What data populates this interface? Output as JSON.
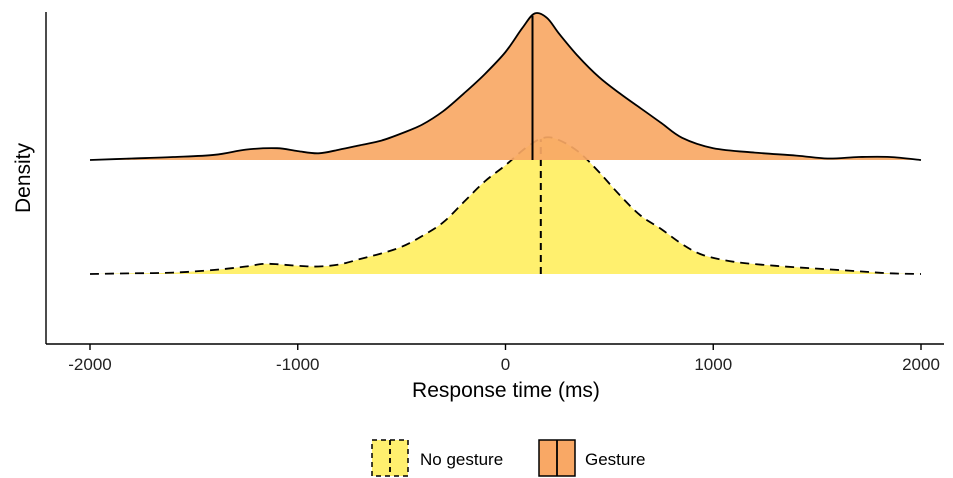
{
  "chart_data": {
    "type": "area",
    "xlabel": "Response time (ms)",
    "ylabel": "Density",
    "xlim": [
      -2000,
      2000
    ],
    "x_ticks": [
      -2000,
      -1000,
      0,
      1000,
      2000
    ],
    "grid": false,
    "legend_position": "bottom",
    "series": [
      {
        "name": "Gesture",
        "color": "#F9A865",
        "line_style": "solid",
        "median": 130,
        "points": [
          [
            -2000,
            0.0
          ],
          [
            -1800,
            0.01
          ],
          [
            -1600,
            0.02
          ],
          [
            -1400,
            0.035
          ],
          [
            -1250,
            0.07
          ],
          [
            -1100,
            0.08
          ],
          [
            -1000,
            0.06
          ],
          [
            -900,
            0.045
          ],
          [
            -800,
            0.07
          ],
          [
            -700,
            0.1
          ],
          [
            -600,
            0.13
          ],
          [
            -500,
            0.18
          ],
          [
            -400,
            0.24
          ],
          [
            -300,
            0.33
          ],
          [
            -200,
            0.45
          ],
          [
            -100,
            0.58
          ],
          [
            0,
            0.73
          ],
          [
            80,
            0.89
          ],
          [
            140,
            0.99
          ],
          [
            200,
            0.96
          ],
          [
            260,
            0.85
          ],
          [
            350,
            0.7
          ],
          [
            450,
            0.56
          ],
          [
            550,
            0.45
          ],
          [
            650,
            0.35
          ],
          [
            750,
            0.25
          ],
          [
            850,
            0.15
          ],
          [
            1000,
            0.08
          ],
          [
            1200,
            0.05
          ],
          [
            1400,
            0.03
          ],
          [
            1550,
            0.01
          ],
          [
            1700,
            0.02
          ],
          [
            1850,
            0.02
          ],
          [
            2000,
            0.0
          ]
        ]
      },
      {
        "name": "No gesture",
        "color": "#FFF06E",
        "line_style": "dashed",
        "median": 170,
        "points": [
          [
            -2000,
            0.0
          ],
          [
            -1800,
            0.005
          ],
          [
            -1600,
            0.01
          ],
          [
            -1400,
            0.03
          ],
          [
            -1250,
            0.055
          ],
          [
            -1150,
            0.075
          ],
          [
            -1000,
            0.06
          ],
          [
            -900,
            0.055
          ],
          [
            -800,
            0.07
          ],
          [
            -700,
            0.11
          ],
          [
            -600,
            0.15
          ],
          [
            -500,
            0.2
          ],
          [
            -400,
            0.28
          ],
          [
            -300,
            0.38
          ],
          [
            -200,
            0.53
          ],
          [
            -100,
            0.68
          ],
          [
            0,
            0.8
          ],
          [
            100,
            0.93
          ],
          [
            180,
            1.0
          ],
          [
            250,
            0.99
          ],
          [
            350,
            0.9
          ],
          [
            450,
            0.75
          ],
          [
            550,
            0.58
          ],
          [
            650,
            0.43
          ],
          [
            750,
            0.33
          ],
          [
            850,
            0.22
          ],
          [
            950,
            0.14
          ],
          [
            1100,
            0.09
          ],
          [
            1300,
            0.06
          ],
          [
            1500,
            0.04
          ],
          [
            1700,
            0.02
          ],
          [
            1850,
            0.005
          ],
          [
            2000,
            0.0
          ]
        ]
      }
    ]
  }
}
